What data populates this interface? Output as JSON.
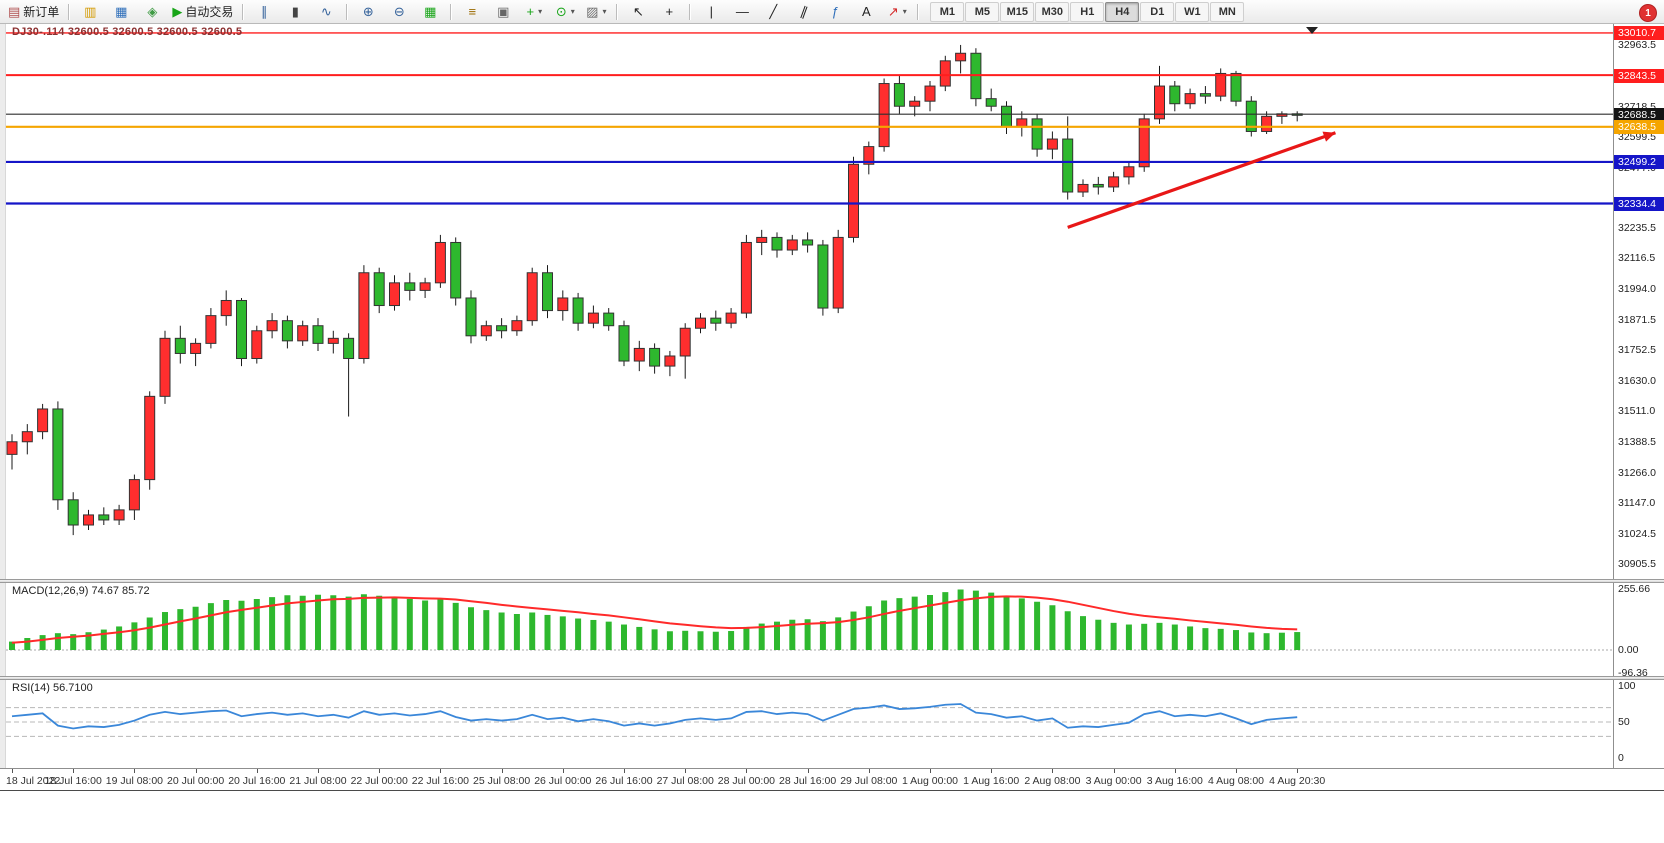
{
  "toolbar": {
    "new_order_label": "新订单",
    "autotrading_label": "自动交易",
    "notification_count": "1",
    "timeframes": [
      "M1",
      "M5",
      "M15",
      "M30",
      "H1",
      "H4",
      "D1",
      "W1",
      "MN"
    ],
    "active_timeframe": "H4",
    "buttons": [
      {
        "name": "new-order-button",
        "icon": "new-order-icon",
        "glyph": "▤",
        "color": "#b05050",
        "label": "新订单"
      },
      {
        "sep": true
      },
      {
        "name": "market-watch-button",
        "icon": "market-watch-icon",
        "glyph": "▥",
        "color": "#d49a00"
      },
      {
        "name": "data-window-button",
        "icon": "data-window-icon",
        "glyph": "▦",
        "color": "#2f6fba"
      },
      {
        "name": "navigator-button",
        "icon": "navigator-icon",
        "glyph": "◈",
        "color": "#3f9b44"
      },
      {
        "name": "autotrading-button",
        "icon": "autotrading-play-icon",
        "glyph": "▶",
        "color": "#18a518",
        "label": "自动交易"
      },
      {
        "sep": true
      },
      {
        "name": "bar-chart-button",
        "icon": "bar-chart-icon",
        "glyph": "∥",
        "color": "#36639b"
      },
      {
        "name": "candlestick-chart-button",
        "icon": "candlestick-icon",
        "glyph": "▮",
        "color": "#444444"
      },
      {
        "name": "line-chart-button",
        "icon": "line-chart-icon",
        "glyph": "∿",
        "color": "#36639b"
      },
      {
        "sep": true
      },
      {
        "name": "zoom-in-button",
        "icon": "zoom-in-icon",
        "glyph": "⊕",
        "color": "#36639b"
      },
      {
        "name": "zoom-out-button",
        "icon": "zoom-out-icon",
        "glyph": "⊖",
        "color": "#36639b"
      },
      {
        "name": "tile-windows-button",
        "icon": "tile-windows-icon",
        "glyph": "▦",
        "color": "#18a518"
      },
      {
        "sep": true
      },
      {
        "name": "indicators-button",
        "icon": "indicators-icon",
        "glyph": "≡",
        "color": "#9a6a00"
      },
      {
        "name": "objects-list-button",
        "icon": "objects-list-icon",
        "glyph": "▣",
        "color": "#666666"
      },
      {
        "name": "add-indicator-button",
        "icon": "add-indicator-icon",
        "glyph": "+",
        "color": "#18a518",
        "caret": true
      },
      {
        "name": "periods-button",
        "icon": "clock-icon",
        "glyph": "⊙",
        "color": "#18a518",
        "caret": true
      },
      {
        "name": "templates-button",
        "icon": "template-icon",
        "glyph": "▨",
        "color": "#6b6b6b",
        "caret": true
      },
      {
        "sep": true
      },
      {
        "name": "cursor-button",
        "icon": "cursor-icon",
        "glyph": "↖",
        "color": "#222222"
      },
      {
        "name": "crosshair-button",
        "icon": "crosshair-icon",
        "glyph": "+",
        "color": "#222222"
      },
      {
        "sep": true
      },
      {
        "name": "vertical-line-button",
        "icon": "vertical-line-icon",
        "glyph": "|",
        "color": "#222222"
      },
      {
        "name": "horizontal-line-button",
        "icon": "horizontal-line-icon",
        "glyph": "—",
        "color": "#222222"
      },
      {
        "name": "trendline-button",
        "icon": "trendline-icon",
        "glyph": "╱",
        "color": "#222222"
      },
      {
        "name": "channel-button",
        "icon": "channel-icon",
        "gly_note": "slanted parallel lines",
        "glyph": "∥",
        "color": "#222222",
        "style": "transform:rotate(20deg);display:inline-block;"
      },
      {
        "name": "fibonacci-button",
        "icon": "fibonacci-icon",
        "glyph": "ƒ",
        "color": "#2f6fba"
      },
      {
        "name": "text-button",
        "icon": "text-icon",
        "glyph": "A",
        "color": "#222222"
      },
      {
        "name": "arrows-button",
        "icon": "arrow-object-icon",
        "glyph": "↗",
        "color": "#d42a2a",
        "caret": true
      },
      {
        "sep": true
      }
    ]
  },
  "chart": {
    "title": "DJ30-.114 32600.5 32600.5 32600.5 32600.5",
    "symbol": "DJ30",
    "current_price": "32688.5"
  },
  "indicators": {
    "macd": {
      "label": "MACD(12,26,9) 74.67 85.72",
      "scale": [
        "255.66",
        "0.00",
        "-96.36"
      ]
    },
    "rsi": {
      "label": "RSI(14) 56.7100",
      "scale": [
        "100",
        "50",
        "0"
      ],
      "levels": [
        70,
        50,
        30
      ]
    }
  },
  "chart_data": {
    "type": "candlestick",
    "symbol": "DJ30",
    "timeframe": "H4",
    "ylim": [
      30846,
      33046
    ],
    "colors": {
      "up": "#ff2e2e",
      "down": "#2eb82e",
      "body_border": "#333333",
      "wick": "#1a1a1a",
      "macd": "#2eb82e",
      "signal": "#ff2a2a",
      "rsi": "#3a87d9"
    },
    "price_ticks": [
      "32963.5",
      "32718.5",
      "32599.5",
      "32477.0",
      "32235.5",
      "32116.5",
      "31994.0",
      "31871.5",
      "31752.5",
      "31630.0",
      "31511.0",
      "31388.5",
      "31266.0",
      "31147.0",
      "31024.5",
      "30905.5"
    ],
    "price_badges": [
      {
        "label": "33010.7",
        "price": 33010.7,
        "color": "#ff1e1e"
      },
      {
        "label": "32843.5",
        "price": 32843.5,
        "color": "#ff1e1e"
      },
      {
        "label": "32688.5",
        "price": 32688.5,
        "color": "#141414"
      },
      {
        "label": "32638.5",
        "price": 32638.5,
        "color": "#f5a500"
      },
      {
        "label": "32499.2",
        "price": 32499.2,
        "color": "#1515c8"
      },
      {
        "label": "32334.4",
        "price": 32334.4,
        "color": "#1515c8"
      }
    ],
    "hlines": [
      {
        "price": 33010.7,
        "color": "#ff1e1e",
        "w": 1.4
      },
      {
        "price": 32843.5,
        "color": "#ff1e1e",
        "w": 2
      },
      {
        "price": 32688.5,
        "color": "#2f2f2f",
        "w": 1.2
      },
      {
        "price": 32638.5,
        "color": "#f5a500",
        "w": 2.2
      },
      {
        "price": 32499.2,
        "color": "#1515c8",
        "w": 2.2
      },
      {
        "price": 32334.4,
        "color": "#1515c8",
        "w": 2.2
      }
    ],
    "arrow": {
      "from_index": 69,
      "from_price": 32240,
      "to_index": 86.5,
      "to_price": 32615,
      "color": "#e81717",
      "width": 3.2
    },
    "time_labels": [
      {
        "i": 0,
        "t": "18 Jul 2022"
      },
      {
        "i": 4,
        "t": "18 Jul 16:00"
      },
      {
        "i": 8,
        "t": "19 Jul 08:00"
      },
      {
        "i": 12,
        "t": "20 Jul 00:00"
      },
      {
        "i": 16,
        "t": "20 Jul 16:00"
      },
      {
        "i": 20,
        "t": "21 Jul 08:00"
      },
      {
        "i": 24,
        "t": "22 Jul 00:00"
      },
      {
        "i": 28,
        "t": "22 Jul 16:00"
      },
      {
        "i": 32,
        "t": "25 Jul 08:00"
      },
      {
        "i": 36,
        "t": "26 Jul 00:00"
      },
      {
        "i": 40,
        "t": "26 Jul 16:00"
      },
      {
        "i": 44,
        "t": "27 Jul 08:00"
      },
      {
        "i": 48,
        "t": "28 Jul 00:00"
      },
      {
        "i": 52,
        "t": "28 Jul 16:00"
      },
      {
        "i": 56,
        "t": "29 Jul 08:00"
      },
      {
        "i": 60,
        "t": "1 Aug 00:00"
      },
      {
        "i": 64,
        "t": "1 Aug 16:00"
      },
      {
        "i": 68,
        "t": "2 Aug 08:00"
      },
      {
        "i": 72,
        "t": "3 Aug 00:00"
      },
      {
        "i": 76,
        "t": "3 Aug 16:00"
      },
      {
        "i": 80,
        "t": "4 Aug 08:00"
      },
      {
        "i": 84,
        "t": "4 Aug 20:30"
      }
    ],
    "candles": [
      [
        31340,
        31420,
        31280,
        31390
      ],
      [
        31390,
        31460,
        31340,
        31430
      ],
      [
        31430,
        31540,
        31400,
        31520
      ],
      [
        31520,
        31550,
        31120,
        31160
      ],
      [
        31160,
        31190,
        31020,
        31060
      ],
      [
        31060,
        31120,
        31040,
        31100
      ],
      [
        31100,
        31130,
        31060,
        31080
      ],
      [
        31080,
        31140,
        31060,
        31120
      ],
      [
        31120,
        31260,
        31080,
        31240
      ],
      [
        31240,
        31590,
        31200,
        31570
      ],
      [
        31570,
        31830,
        31540,
        31800
      ],
      [
        31800,
        31850,
        31700,
        31740
      ],
      [
        31740,
        31800,
        31690,
        31780
      ],
      [
        31780,
        31920,
        31760,
        31890
      ],
      [
        31890,
        31990,
        31850,
        31950
      ],
      [
        31950,
        31960,
        31690,
        31720
      ],
      [
        31720,
        31850,
        31700,
        31830
      ],
      [
        31830,
        31900,
        31800,
        31870
      ],
      [
        31870,
        31890,
        31760,
        31790
      ],
      [
        31790,
        31870,
        31770,
        31850
      ],
      [
        31850,
        31880,
        31750,
        31780
      ],
      [
        31780,
        31830,
        31740,
        31800
      ],
      [
        31800,
        31820,
        31490,
        31720
      ],
      [
        31720,
        32090,
        31700,
        32060
      ],
      [
        32060,
        32080,
        31900,
        31930
      ],
      [
        31930,
        32050,
        31910,
        32020
      ],
      [
        32020,
        32060,
        31950,
        31990
      ],
      [
        31990,
        32040,
        31960,
        32020
      ],
      [
        32020,
        32210,
        32000,
        32180
      ],
      [
        32180,
        32200,
        31930,
        31960
      ],
      [
        31960,
        31990,
        31780,
        31810
      ],
      [
        31810,
        31870,
        31790,
        31850
      ],
      [
        31850,
        31880,
        31800,
        31830
      ],
      [
        31830,
        31890,
        31810,
        31870
      ],
      [
        31870,
        32080,
        31850,
        32060
      ],
      [
        32060,
        32090,
        31880,
        31910
      ],
      [
        31910,
        31990,
        31870,
        31960
      ],
      [
        31960,
        31980,
        31830,
        31860
      ],
      [
        31860,
        31930,
        31840,
        31900
      ],
      [
        31900,
        31920,
        31830,
        31850
      ],
      [
        31850,
        31870,
        31690,
        31710
      ],
      [
        31710,
        31790,
        31670,
        31760
      ],
      [
        31760,
        31780,
        31660,
        31690
      ],
      [
        31690,
        31750,
        31650,
        31730
      ],
      [
        31730,
        31860,
        31640,
        31840
      ],
      [
        31840,
        31900,
        31820,
        31880
      ],
      [
        31880,
        31910,
        31830,
        31860
      ],
      [
        31860,
        31920,
        31840,
        31900
      ],
      [
        31900,
        32210,
        31880,
        32180
      ],
      [
        32180,
        32230,
        32130,
        32200
      ],
      [
        32200,
        32220,
        32120,
        32150
      ],
      [
        32150,
        32210,
        32130,
        32190
      ],
      [
        32190,
        32220,
        32140,
        32170
      ],
      [
        32170,
        32190,
        31890,
        31920
      ],
      [
        31920,
        32230,
        31900,
        32200
      ],
      [
        32200,
        32520,
        32180,
        32490
      ],
      [
        32490,
        32580,
        32450,
        32560
      ],
      [
        32560,
        32830,
        32540,
        32810
      ],
      [
        32810,
        32840,
        32690,
        32720
      ],
      [
        32720,
        32760,
        32680,
        32740
      ],
      [
        32740,
        32820,
        32700,
        32800
      ],
      [
        32800,
        32920,
        32780,
        32900
      ],
      [
        32900,
        32963,
        32850,
        32930
      ],
      [
        32930,
        32950,
        32720,
        32750
      ],
      [
        32750,
        32790,
        32700,
        32720
      ],
      [
        32720,
        32740,
        32610,
        32640
      ],
      [
        32640,
        32700,
        32600,
        32670
      ],
      [
        32670,
        32690,
        32520,
        32550
      ],
      [
        32550,
        32620,
        32510,
        32590
      ],
      [
        32590,
        32680,
        32350,
        32380
      ],
      [
        32380,
        32430,
        32360,
        32410
      ],
      [
        32410,
        32440,
        32370,
        32400
      ],
      [
        32400,
        32460,
        32380,
        32440
      ],
      [
        32440,
        32500,
        32410,
        32480
      ],
      [
        32480,
        32690,
        32460,
        32670
      ],
      [
        32670,
        32880,
        32650,
        32800
      ],
      [
        32800,
        32820,
        32700,
        32730
      ],
      [
        32730,
        32790,
        32710,
        32770
      ],
      [
        32770,
        32800,
        32730,
        32760
      ],
      [
        32760,
        32870,
        32740,
        32850
      ],
      [
        32850,
        32860,
        32720,
        32740
      ],
      [
        32740,
        32760,
        32600,
        32620
      ],
      [
        32620,
        32700,
        32610,
        32680
      ],
      [
        32680,
        32700,
        32650,
        32690
      ],
      [
        32690,
        32700,
        32660,
        32688.5
      ]
    ],
    "macd_hist": [
      35,
      50,
      62,
      70,
      66,
      74,
      85,
      98,
      115,
      135,
      158,
      170,
      180,
      195,
      208,
      205,
      212,
      220,
      228,
      226,
      230,
      228,
      222,
      232,
      226,
      220,
      213,
      206,
      212,
      196,
      178,
      166,
      156,
      150,
      156,
      146,
      140,
      131,
      125,
      118,
      106,
      96,
      86,
      78,
      80,
      78,
      76,
      79,
      96,
      110,
      118,
      126,
      128,
      120,
      136,
      160,
      182,
      206,
      216,
      222,
      229,
      241,
      252,
      247,
      239,
      226,
      215,
      201,
      186,
      161,
      141,
      126,
      113,
      106,
      109,
      113,
      106,
      98,
      91,
      88,
      83,
      73,
      70,
      72,
      74.67
    ],
    "macd_signal": [
      30,
      35,
      42,
      50,
      55,
      60,
      67,
      74,
      82,
      93,
      106,
      119,
      131,
      144,
      157,
      167,
      176,
      185,
      194,
      200,
      206,
      211,
      213,
      217,
      218,
      219,
      217,
      215,
      214,
      210,
      203,
      196,
      188,
      181,
      175,
      169,
      163,
      157,
      150,
      144,
      136,
      128,
      119,
      111,
      105,
      99,
      94,
      91,
      92,
      95,
      100,
      105,
      109,
      112,
      116,
      125,
      136,
      150,
      163,
      174,
      185,
      196,
      207,
      215,
      221,
      223,
      222,
      218,
      211,
      201,
      188,
      175,
      162,
      151,
      142,
      136,
      130,
      123,
      117,
      111,
      105,
      98,
      92,
      88,
      85.72
    ],
    "rsi": [
      58,
      60,
      62,
      45,
      41,
      44,
      43,
      46,
      52,
      60,
      64,
      61,
      63,
      65,
      66,
      58,
      61,
      63,
      60,
      62,
      58,
      60,
      56,
      65,
      60,
      62,
      59,
      61,
      65,
      57,
      52,
      54,
      52,
      54,
      60,
      54,
      56,
      51,
      54,
      51,
      45,
      48,
      45,
      48,
      53,
      55,
      53,
      55,
      64,
      65,
      61,
      63,
      61,
      52,
      60,
      68,
      70,
      73,
      68,
      69,
      71,
      74,
      75,
      63,
      61,
      56,
      58,
      52,
      55,
      42,
      44,
      43,
      46,
      49,
      61,
      65,
      58,
      60,
      58,
      62,
      55,
      47,
      53,
      55,
      56.71
    ]
  }
}
